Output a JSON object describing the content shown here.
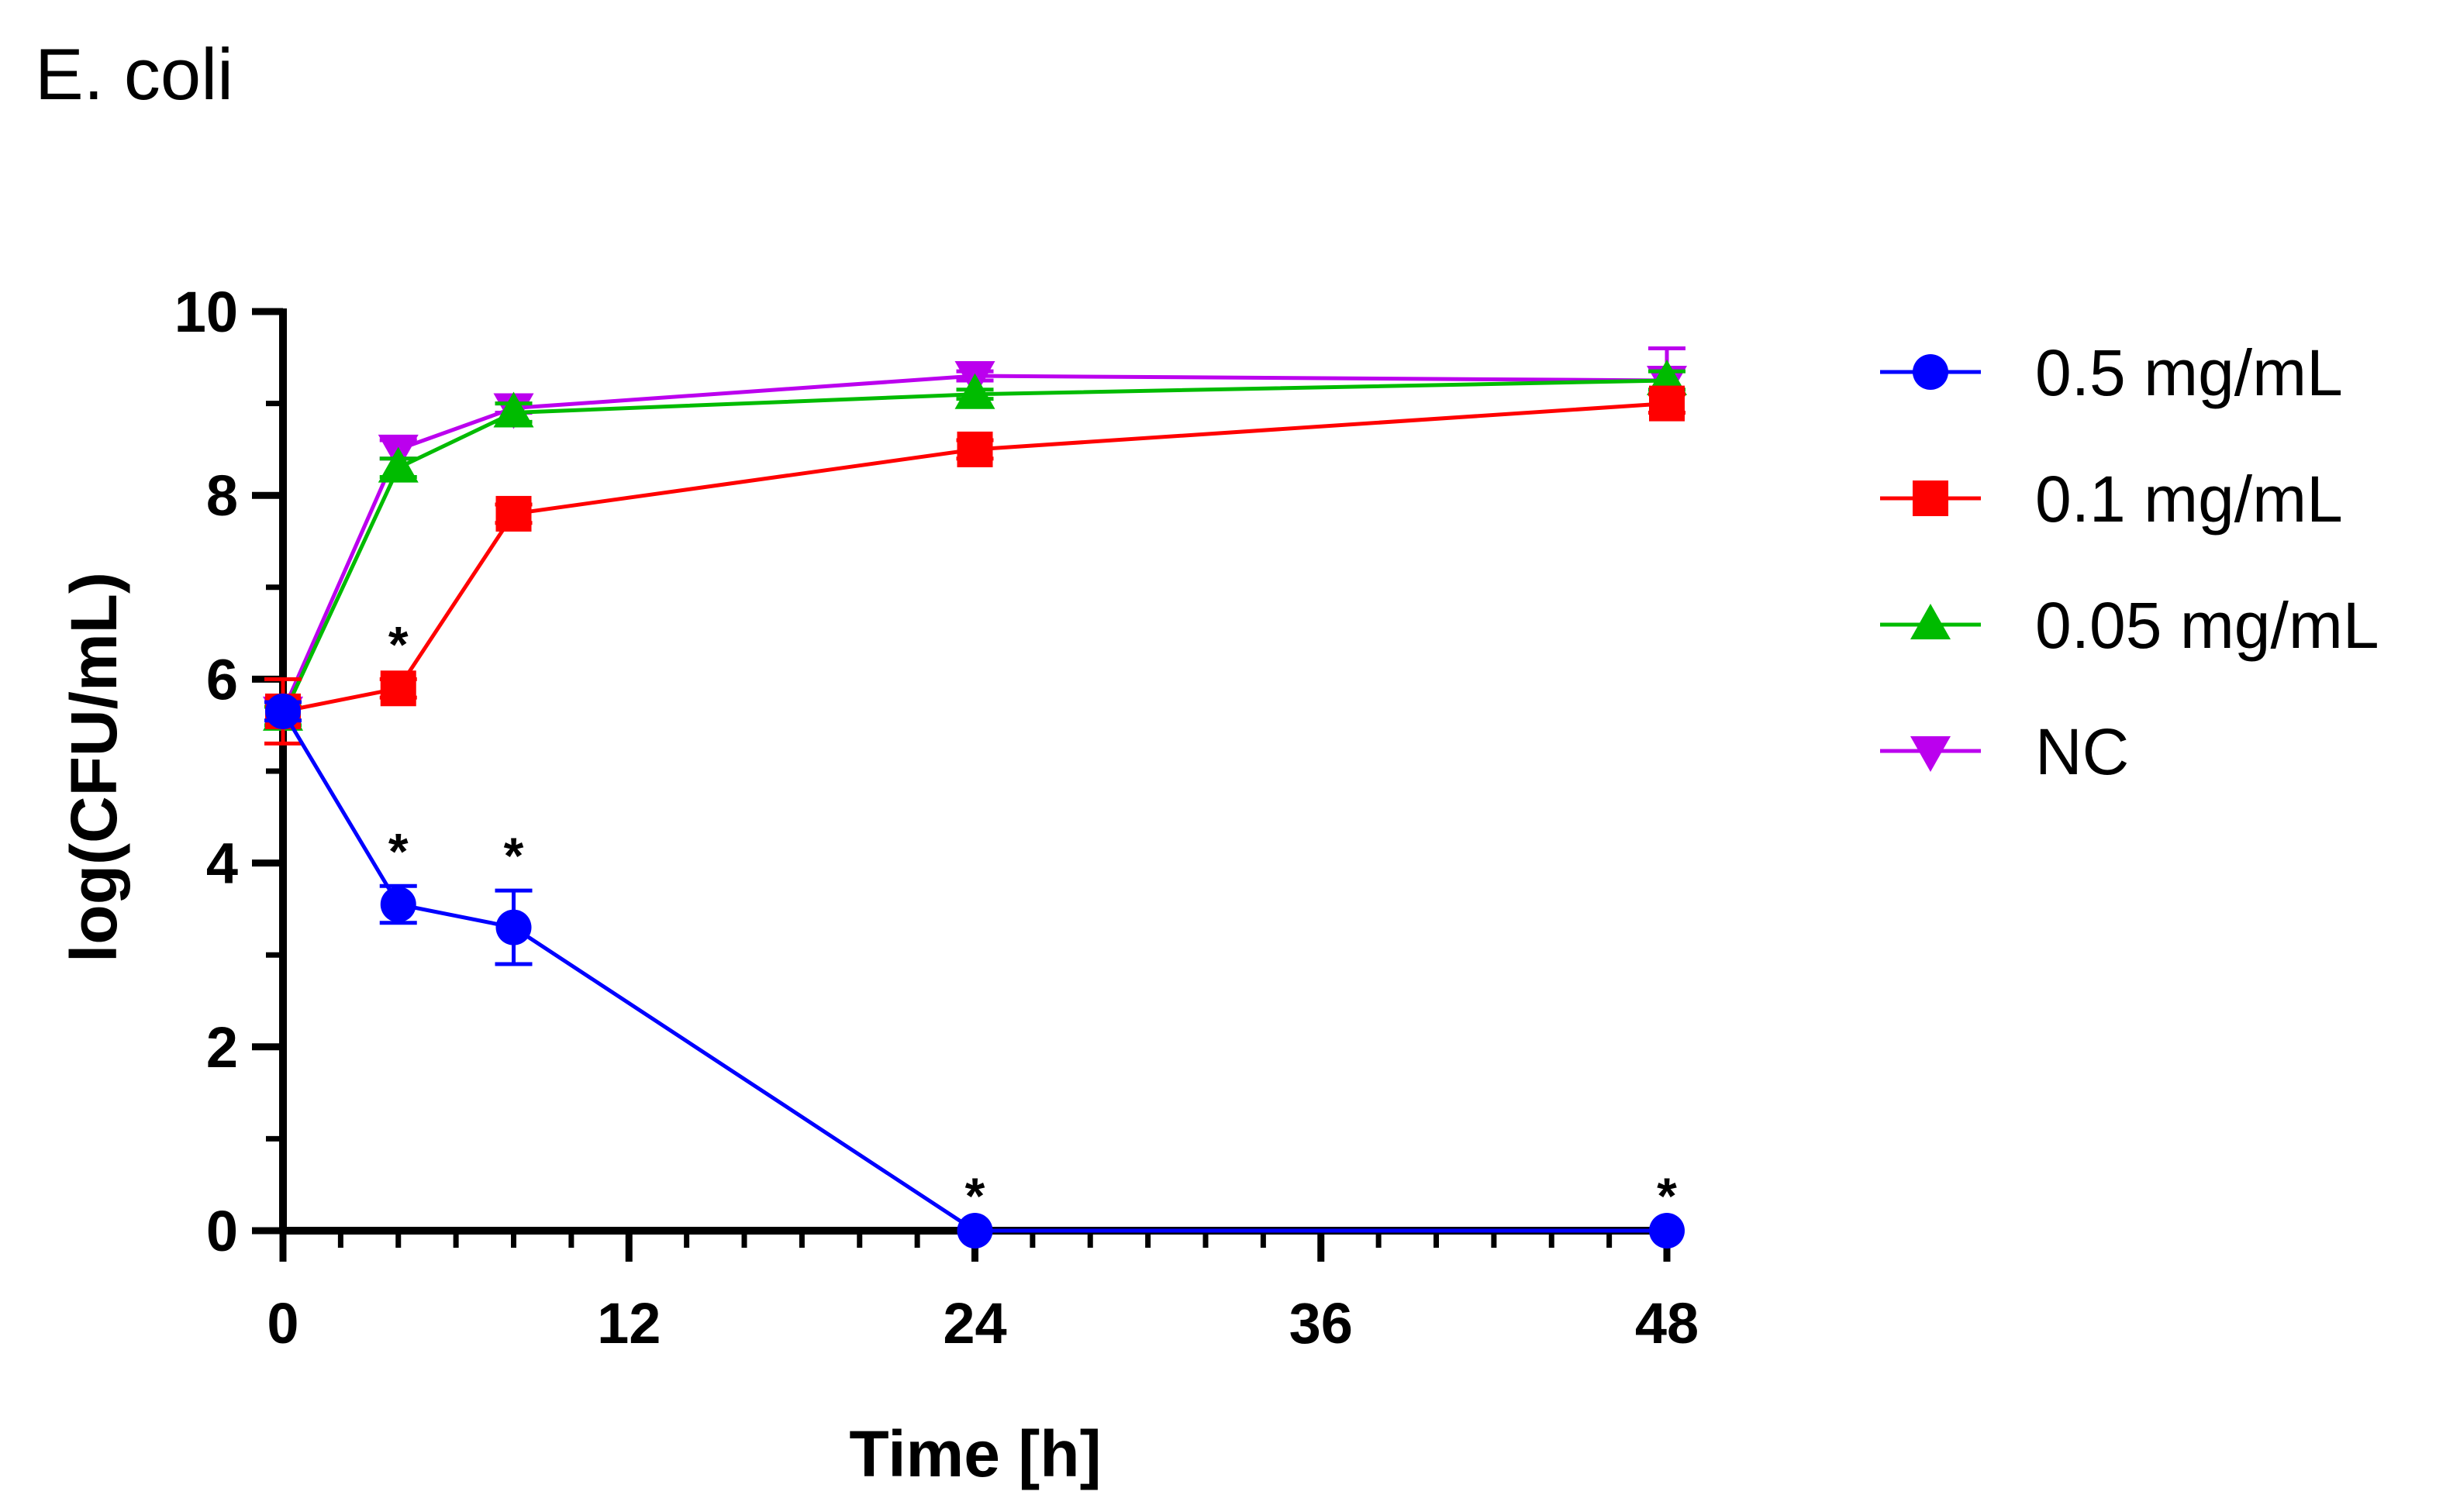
{
  "chart_data": {
    "type": "line",
    "title": "E. coli",
    "xlabel": "Time [h]",
    "ylabel": "log(CFU/mL)",
    "xlim": [
      0,
      48
    ],
    "ylim": [
      0,
      10
    ],
    "x_ticks": [
      0,
      12,
      24,
      36,
      48
    ],
    "x_minor_step": 2,
    "y_ticks": [
      0,
      2,
      4,
      6,
      8,
      10
    ],
    "y_minor_step": 1,
    "grid": false,
    "legend_position": "right",
    "x": [
      0,
      4,
      8,
      24,
      48
    ],
    "series": [
      {
        "name": "0.5 mg/mL",
        "color": "#0000ff",
        "marker": "circle",
        "values": [
          5.65,
          3.55,
          3.3,
          0,
          0
        ],
        "errors": [
          0.1,
          0.2,
          0.4,
          0,
          0
        ],
        "significant": [
          false,
          true,
          true,
          true,
          true
        ]
      },
      {
        "name": "0.1 mg/mL",
        "color": "#ff0000",
        "marker": "square",
        "values": [
          5.65,
          5.9,
          7.8,
          8.5,
          9.0
        ],
        "errors": [
          0.35,
          0.1,
          0.1,
          0.1,
          0.1
        ],
        "significant": [
          false,
          true,
          false,
          false,
          false
        ]
      },
      {
        "name": "0.05 mg/mL",
        "color": "#00bb00",
        "marker": "triangle-up",
        "values": [
          5.6,
          8.3,
          8.9,
          9.1,
          9.25
        ],
        "errors": [
          0.1,
          0.1,
          0.1,
          0.05,
          0.1
        ],
        "significant": [
          false,
          false,
          false,
          false,
          false
        ]
      },
      {
        "name": "NC",
        "color": "#bb00ee",
        "marker": "triangle-down",
        "values": [
          5.65,
          8.5,
          8.95,
          9.3,
          9.25
        ],
        "errors": [
          0.1,
          0.1,
          0.05,
          0.05,
          0.35
        ],
        "significant": [
          false,
          false,
          false,
          false,
          false
        ]
      }
    ],
    "significance_symbol": "*"
  }
}
